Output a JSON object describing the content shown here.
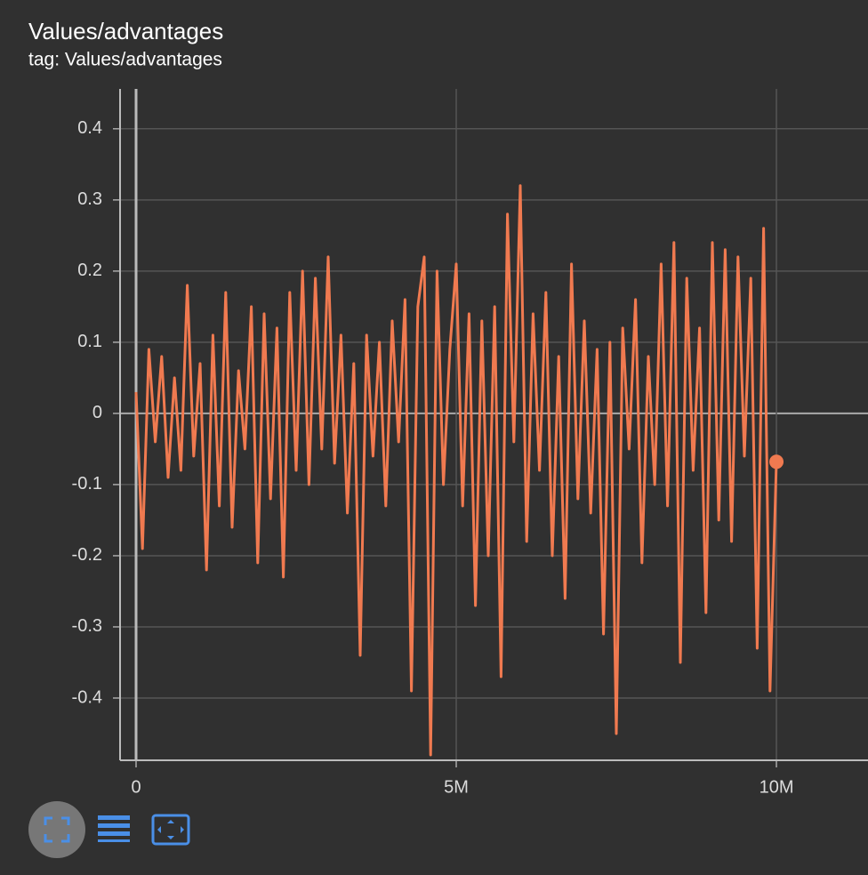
{
  "chart_data": {
    "type": "line",
    "title": "Values/advantages",
    "subtitle": "tag: Values/advantages",
    "x": [
      0,
      100000,
      200000,
      300000,
      400000,
      500000,
      600000,
      700000,
      800000,
      900000,
      1000000,
      1100000,
      1200000,
      1300000,
      1400000,
      1500000,
      1600000,
      1700000,
      1800000,
      1900000,
      2000000,
      2100000,
      2200000,
      2300000,
      2400000,
      2500000,
      2600000,
      2700000,
      2800000,
      2900000,
      3000000,
      3100000,
      3200000,
      3300000,
      3400000,
      3500000,
      3600000,
      3700000,
      3800000,
      3900000,
      4000000,
      4100000,
      4200000,
      4300000,
      4400000,
      4500000,
      4600000,
      4700000,
      4800000,
      4900000,
      5000000,
      5100000,
      5200000,
      5300000,
      5400000,
      5500000,
      5600000,
      5700000,
      5800000,
      5900000,
      6000000,
      6100000,
      6200000,
      6300000,
      6400000,
      6500000,
      6600000,
      6700000,
      6800000,
      6900000,
      7000000,
      7100000,
      7200000,
      7300000,
      7400000,
      7500000,
      7600000,
      7700000,
      7800000,
      7900000,
      8000000,
      8100000,
      8200000,
      8300000,
      8400000,
      8500000,
      8600000,
      8700000,
      8800000,
      8900000,
      9000000,
      9100000,
      9200000,
      9300000,
      9400000,
      9500000,
      9600000,
      9700000,
      9800000,
      9900000,
      10000000
    ],
    "values": [
      0.03,
      -0.19,
      0.09,
      -0.04,
      0.08,
      -0.09,
      0.05,
      -0.08,
      0.18,
      -0.06,
      0.07,
      -0.22,
      0.11,
      -0.13,
      0.17,
      -0.16,
      0.06,
      -0.05,
      0.15,
      -0.21,
      0.14,
      -0.12,
      0.12,
      -0.23,
      0.17,
      -0.08,
      0.2,
      -0.1,
      0.19,
      -0.05,
      0.22,
      -0.07,
      0.11,
      -0.14,
      0.07,
      -0.34,
      0.11,
      -0.06,
      0.1,
      -0.13,
      0.13,
      -0.04,
      0.16,
      -0.39,
      0.15,
      0.22,
      -0.48,
      0.2,
      -0.1,
      0.09,
      0.21,
      -0.13,
      0.14,
      -0.27,
      0.13,
      -0.2,
      0.15,
      -0.37,
      0.28,
      -0.04,
      0.32,
      -0.18,
      0.14,
      -0.08,
      0.17,
      -0.2,
      0.08,
      -0.26,
      0.21,
      -0.12,
      0.13,
      -0.14,
      0.09,
      -0.31,
      0.1,
      -0.45,
      0.12,
      -0.05,
      0.16,
      -0.21,
      0.08,
      -0.1,
      0.21,
      -0.13,
      0.24,
      -0.35,
      0.19,
      -0.08,
      0.12,
      -0.28,
      0.24,
      -0.15,
      0.23,
      -0.18,
      0.22,
      -0.06,
      0.19,
      -0.33,
      0.26,
      -0.39,
      -0.068
    ],
    "color": "#f07a50",
    "xlim": [
      -250000,
      11430000
    ],
    "ylim": [
      -0.4875,
      0.456
    ],
    "xticks": [
      0,
      {
        "value": 5000000,
        "label": "5M"
      },
      {
        "value": 10000000,
        "label": "10M"
      }
    ],
    "yticks": [
      -0.4,
      -0.3,
      -0.2,
      -0.1,
      0,
      0.1,
      0.2,
      0.3,
      0.4
    ],
    "grid": true
  }
}
